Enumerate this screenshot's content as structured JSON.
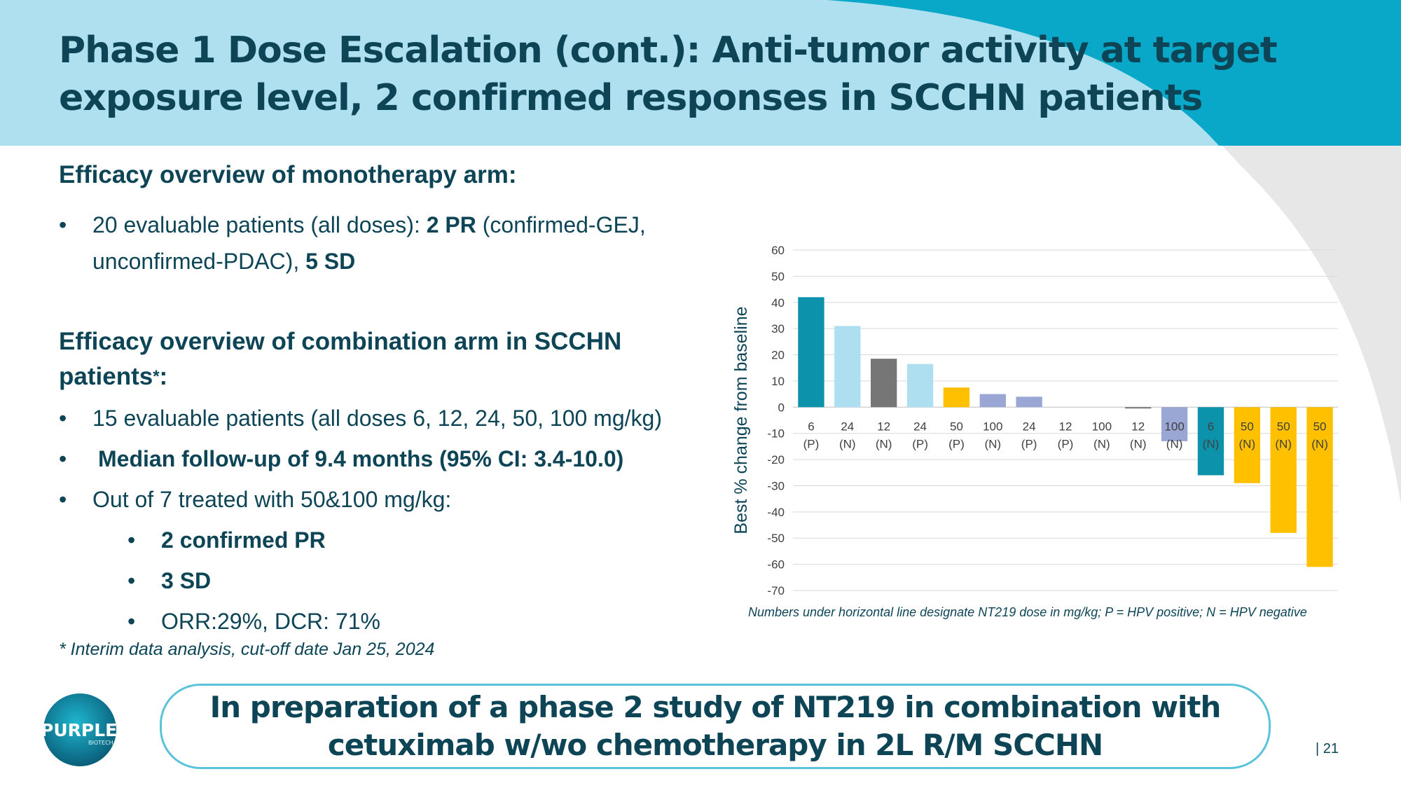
{
  "slide": {
    "title": "Phase 1 Dose Escalation (cont.): Anti-tumor activity at target exposure level, 2 confirmed responses in SCCHN patients",
    "page_number": "| 21"
  },
  "mono": {
    "heading": "Efficacy overview of monotherapy arm",
    "heading_suffix": ":",
    "b1_pre": "20 evaluable patients (all doses):  ",
    "b1_pr": "2 PR",
    "b1_mid": " (confirmed-GEJ, unconfirmed-PDAC), ",
    "b1_sd": "5 SD"
  },
  "combo": {
    "heading": "Efficacy overview of combination arm in SCCHN patients",
    "heading_star": "*",
    "heading_colon": ":",
    "b1": "15 evaluable patients (all doses 6, 12, 24, 50, 100 mg/kg)",
    "b2": "Median follow-up of 9.4 months (95% CI: 3.4-10.0)",
    "b3": "Out of 7 treated with 50&100 mg/kg:",
    "sub1": "2 confirmed PR",
    "sub2": "3 SD",
    "sub3": "ORR:29%, DCR: 71%"
  },
  "footnote": "* Interim data analysis, cut-off date Jan 25, 2024",
  "chart_note": "Numbers under horizontal line designate NT219 dose in mg/kg; P = HPV positive; N = HPV negative",
  "banner": {
    "line1": "In preparation of a phase 2 study of NT219 in combination with",
    "line2": "cetuximab w/wo chemotherapy in 2L R/M SCCHN"
  },
  "logo": {
    "text": "PURPLE",
    "sub": "BIOTECH"
  },
  "colors": {
    "header_light": "#aee0f0",
    "header_teal": "#0aa8c8",
    "title": "#0d4556",
    "bar_dark_teal": "#0c92ab",
    "bar_light_blue": "#aedff0",
    "bar_gray": "#767676",
    "bar_gold": "#ffc000",
    "bar_periwinkle": "#9aa6d4",
    "banner_border": "#5bc3d9"
  },
  "chart_data": {
    "type": "bar",
    "title": "",
    "xlabel": "",
    "ylabel": "Best % change from baseline",
    "ylim": [
      -70,
      60
    ],
    "yticks": [
      60,
      50,
      40,
      30,
      20,
      10,
      0,
      -10,
      -20,
      -30,
      -40,
      -50,
      -60,
      -70
    ],
    "grid": true,
    "categories": [
      {
        "dose": "6",
        "hpv": "(P)"
      },
      {
        "dose": "24",
        "hpv": "(N)"
      },
      {
        "dose": "12",
        "hpv": "(N)"
      },
      {
        "dose": "24",
        "hpv": "(P)"
      },
      {
        "dose": "50",
        "hpv": "(P)"
      },
      {
        "dose": "100",
        "hpv": "(N)"
      },
      {
        "dose": "24",
        "hpv": "(P)"
      },
      {
        "dose": "12",
        "hpv": "(P)"
      },
      {
        "dose": "100",
        "hpv": "(N)"
      },
      {
        "dose": "12",
        "hpv": "(N)"
      },
      {
        "dose": "100",
        "hpv": "(N)"
      },
      {
        "dose": "6",
        "hpv": "(N)"
      },
      {
        "dose": "50",
        "hpv": "(N)"
      },
      {
        "dose": "50",
        "hpv": "(N)"
      },
      {
        "dose": "50",
        "hpv": "(N)"
      }
    ],
    "values": [
      42,
      31,
      18.5,
      16.5,
      7.5,
      5,
      4,
      0,
      0,
      -0.5,
      -13,
      -26,
      -29,
      -48,
      -61
    ],
    "colors": [
      "#0c92ab",
      "#aedff0",
      "#767676",
      "#aedff0",
      "#ffc000",
      "#9aa6d4",
      "#9aa6d4",
      "#9aa6d4",
      "#9aa6d4",
      "#767676",
      "#9aa6d4",
      "#0c92ab",
      "#ffc000",
      "#ffc000",
      "#ffc000"
    ]
  }
}
